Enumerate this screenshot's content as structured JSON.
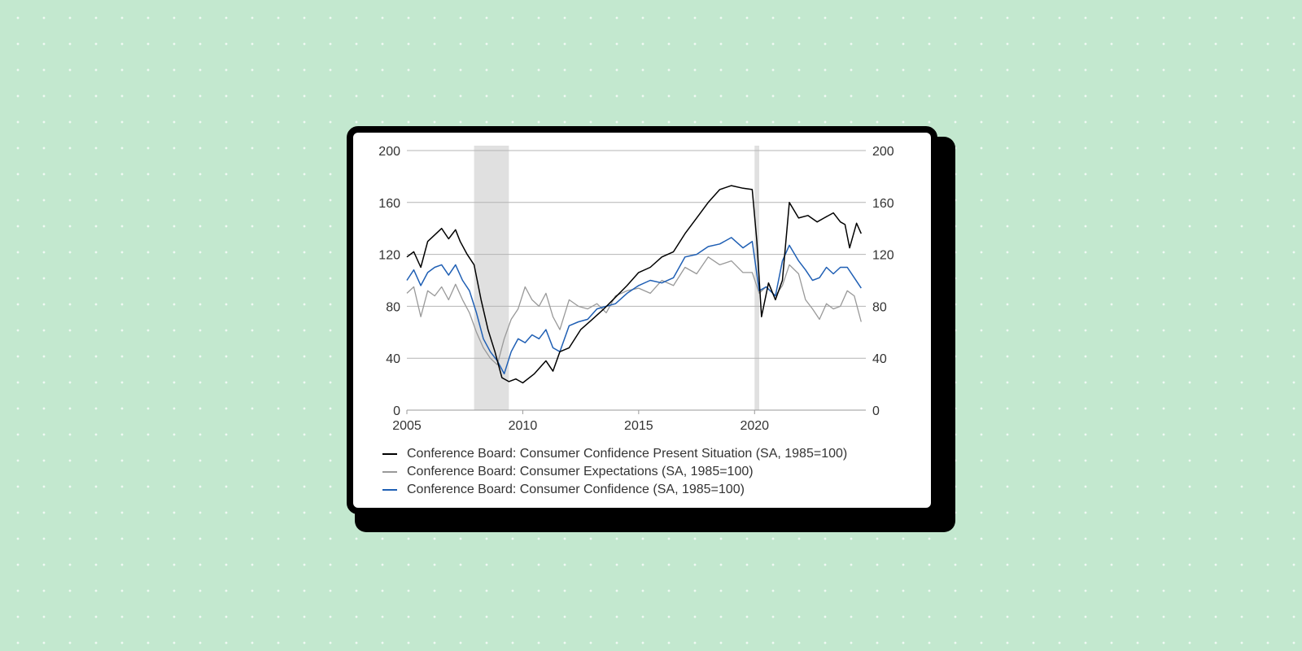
{
  "chart_data": {
    "type": "line",
    "title": "",
    "xlabel": "",
    "ylabel": "",
    "xlim": [
      2005,
      2024.8
    ],
    "ylim": [
      0,
      200
    ],
    "x_ticks": [
      "2005",
      "2010",
      "2015",
      "2020"
    ],
    "x_tick_values": [
      2005,
      2010,
      2015,
      2020
    ],
    "y_ticks": [
      "0",
      "40",
      "80",
      "120",
      "160",
      "200"
    ],
    "y_tick_values": [
      0,
      40,
      80,
      120,
      160,
      200
    ],
    "grid": true,
    "recessions": [
      {
        "start": 2007.9,
        "end": 2009.4
      },
      {
        "start": 2020.0,
        "end": 2020.2
      }
    ],
    "series": [
      {
        "name": "Conference Board: Consumer Confidence Present Situation (SA, 1985=100)",
        "color": "#000000",
        "x": [
          2005.0,
          2005.3,
          2005.6,
          2005.9,
          2006.2,
          2006.5,
          2006.8,
          2007.1,
          2007.3,
          2007.6,
          2007.9,
          2008.2,
          2008.5,
          2008.8,
          2009.1,
          2009.4,
          2009.7,
          2010.0,
          2010.5,
          2011.0,
          2011.3,
          2011.6,
          2012.0,
          2012.5,
          2013.0,
          2013.5,
          2014.0,
          2014.5,
          2015.0,
          2015.5,
          2016.0,
          2016.5,
          2017.0,
          2017.5,
          2018.0,
          2018.5,
          2019.0,
          2019.5,
          2019.9,
          2020.1,
          2020.3,
          2020.6,
          2020.9,
          2021.2,
          2021.5,
          2021.9,
          2022.3,
          2022.7,
          2023.0,
          2023.4,
          2023.7,
          2023.9,
          2024.1,
          2024.4,
          2024.6
        ],
        "values": [
          118,
          122,
          110,
          130,
          135,
          140,
          132,
          139,
          130,
          120,
          112,
          85,
          62,
          45,
          25,
          22,
          24,
          21,
          28,
          38,
          30,
          45,
          48,
          62,
          70,
          78,
          87,
          96,
          106,
          110,
          118,
          122,
          136,
          148,
          160,
          170,
          173,
          171,
          170,
          130,
          72,
          98,
          85,
          100,
          160,
          148,
          150,
          145,
          148,
          152,
          145,
          143,
          125,
          144,
          136
        ]
      },
      {
        "name": "Conference Board: Consumer Expectations (SA, 1985=100)",
        "color": "#999999",
        "x": [
          2005.0,
          2005.3,
          2005.6,
          2005.9,
          2006.2,
          2006.5,
          2006.8,
          2007.1,
          2007.4,
          2007.7,
          2008.0,
          2008.3,
          2008.6,
          2008.9,
          2009.2,
          2009.5,
          2009.8,
          2010.1,
          2010.4,
          2010.7,
          2011.0,
          2011.3,
          2011.6,
          2012.0,
          2012.4,
          2012.8,
          2013.2,
          2013.6,
          2014.0,
          2014.5,
          2015.0,
          2015.5,
          2016.0,
          2016.5,
          2017.0,
          2017.5,
          2018.0,
          2018.5,
          2019.0,
          2019.5,
          2019.9,
          2020.2,
          2020.5,
          2020.9,
          2021.2,
          2021.5,
          2021.9,
          2022.2,
          2022.5,
          2022.8,
          2023.1,
          2023.4,
          2023.7,
          2024.0,
          2024.3,
          2024.6
        ],
        "values": [
          90,
          95,
          72,
          92,
          88,
          95,
          85,
          97,
          85,
          75,
          60,
          48,
          40,
          35,
          55,
          70,
          78,
          95,
          85,
          80,
          90,
          72,
          62,
          85,
          80,
          78,
          82,
          75,
          88,
          92,
          94,
          90,
          100,
          96,
          110,
          105,
          118,
          112,
          115,
          106,
          106,
          90,
          95,
          88,
          96,
          112,
          105,
          85,
          78,
          70,
          82,
          78,
          80,
          92,
          88,
          68
        ]
      },
      {
        "name": "Conference Board: Consumer Confidence (SA, 1985=100)",
        "color": "#1f5fb4",
        "x": [
          2005.0,
          2005.3,
          2005.6,
          2005.9,
          2006.2,
          2006.5,
          2006.8,
          2007.1,
          2007.4,
          2007.7,
          2008.0,
          2008.3,
          2008.6,
          2008.9,
          2009.2,
          2009.5,
          2009.8,
          2010.1,
          2010.4,
          2010.7,
          2011.0,
          2011.3,
          2011.6,
          2012.0,
          2012.4,
          2012.8,
          2013.2,
          2013.6,
          2014.0,
          2014.5,
          2015.0,
          2015.5,
          2016.0,
          2016.5,
          2017.0,
          2017.5,
          2018.0,
          2018.5,
          2019.0,
          2019.5,
          2019.9,
          2020.2,
          2020.5,
          2020.9,
          2021.2,
          2021.5,
          2021.9,
          2022.2,
          2022.5,
          2022.8,
          2023.1,
          2023.4,
          2023.7,
          2024.0,
          2024.3,
          2024.6
        ],
        "values": [
          100,
          108,
          96,
          106,
          110,
          112,
          104,
          112,
          100,
          92,
          75,
          55,
          45,
          38,
          28,
          45,
          55,
          52,
          58,
          55,
          62,
          48,
          45,
          65,
          68,
          70,
          78,
          80,
          82,
          90,
          96,
          100,
          98,
          102,
          118,
          120,
          126,
          128,
          133,
          125,
          130,
          92,
          95,
          88,
          115,
          127,
          115,
          108,
          100,
          102,
          110,
          105,
          110,
          110,
          102,
          94
        ]
      }
    ]
  }
}
